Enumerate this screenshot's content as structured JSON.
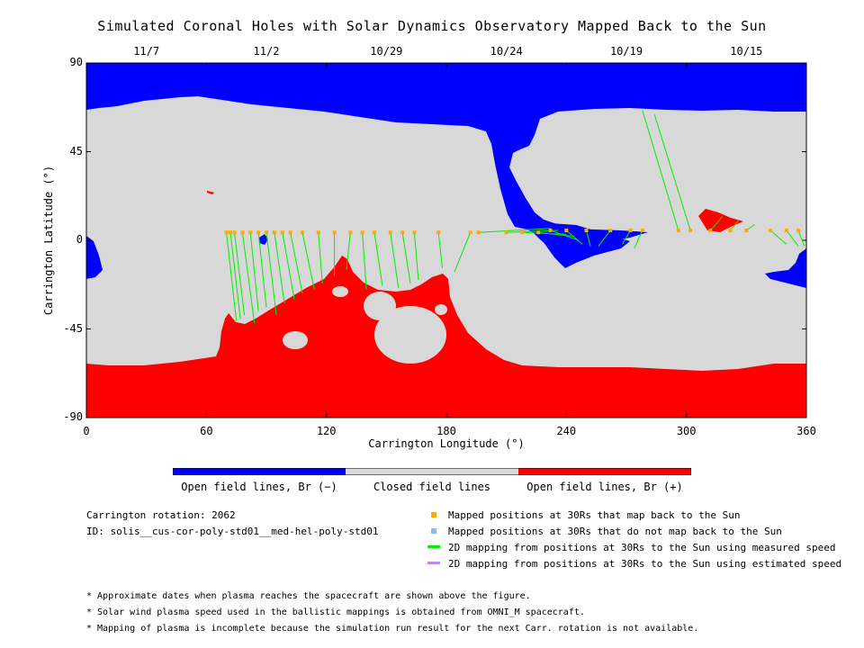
{
  "title": "Simulated Coronal Holes with Solar Dynamics Observatory Mapped Back to the Sun",
  "chart_data": {
    "type": "map",
    "xlabel": "Carrington Longitude (°)",
    "ylabel": "Carrington Latitude (°)",
    "xlim": [
      0,
      360
    ],
    "ylim": [
      -90,
      90
    ],
    "x_ticks": [
      "0",
      "60",
      "120",
      "180",
      "240",
      "300",
      "360"
    ],
    "y_ticks": [
      "90",
      "45",
      "0",
      "-45",
      "-90"
    ],
    "top_dates": [
      {
        "label": "11/7",
        "lon": 30
      },
      {
        "label": "11/2",
        "lon": 90
      },
      {
        "label": "10/29",
        "lon": 150
      },
      {
        "label": "10/24",
        "lon": 210
      },
      {
        "label": "10/19",
        "lon": 270
      },
      {
        "label": "10/15",
        "lon": 330
      }
    ],
    "colors": {
      "open_negative": "#0000ff",
      "closed": "#d8d8d8",
      "open_positive": "#ff0000",
      "mapped": "#ffaa00",
      "unmapped": "#88bbee",
      "measured_line": "#00ee00",
      "estimated_line": "#bb88ee"
    },
    "mapping_lines": [
      {
        "from": [
          70,
          4
        ],
        "to": [
          75,
          -41
        ]
      },
      {
        "from": [
          72,
          4
        ],
        "to": [
          77,
          -40
        ]
      },
      {
        "from": [
          74,
          4
        ],
        "to": [
          79,
          -38
        ]
      },
      {
        "from": [
          78,
          4
        ],
        "to": [
          84,
          -42
        ]
      },
      {
        "from": [
          82,
          4
        ],
        "to": [
          86,
          -36
        ]
      },
      {
        "from": [
          86,
          4
        ],
        "to": [
          90,
          -34
        ]
      },
      {
        "from": [
          90,
          4
        ],
        "to": [
          95,
          -38
        ]
      },
      {
        "from": [
          94,
          4
        ],
        "to": [
          99,
          -32
        ]
      },
      {
        "from": [
          98,
          4
        ],
        "to": [
          104,
          -30
        ]
      },
      {
        "from": [
          102,
          4
        ],
        "to": [
          108,
          -27
        ]
      },
      {
        "from": [
          108,
          4
        ],
        "to": [
          114,
          -25
        ]
      },
      {
        "from": [
          116,
          4
        ],
        "to": [
          118,
          -22
        ]
      },
      {
        "from": [
          124,
          4
        ],
        "to": [
          124,
          -18
        ]
      },
      {
        "from": [
          132,
          4
        ],
        "to": [
          130,
          -15
        ]
      },
      {
        "from": [
          138,
          4
        ],
        "to": [
          140,
          -25
        ]
      },
      {
        "from": [
          144,
          4
        ],
        "to": [
          148,
          -23
        ]
      },
      {
        "from": [
          152,
          4
        ],
        "to": [
          156,
          -24
        ]
      },
      {
        "from": [
          158,
          4
        ],
        "to": [
          162,
          -22
        ]
      },
      {
        "from": [
          164,
          4
        ],
        "to": [
          166,
          -20
        ]
      },
      {
        "from": [
          176,
          4
        ],
        "to": [
          178,
          -14
        ]
      },
      {
        "from": [
          192,
          4
        ],
        "to": [
          184,
          -16
        ]
      },
      {
        "from": [
          196,
          4
        ],
        "to": [
          232,
          6
        ]
      },
      {
        "from": [
          210,
          4
        ],
        "to": [
          236,
          5
        ]
      },
      {
        "from": [
          218,
          4
        ],
        "to": [
          240,
          3
        ]
      },
      {
        "from": [
          226,
          4
        ],
        "to": [
          244,
          2
        ]
      },
      {
        "from": [
          232,
          5
        ],
        "to": [
          246,
          0
        ]
      },
      {
        "from": [
          240,
          5
        ],
        "to": [
          248,
          -2
        ]
      },
      {
        "from": [
          250,
          5
        ],
        "to": [
          252,
          -3
        ]
      },
      {
        "from": [
          262,
          5
        ],
        "to": [
          256,
          -3
        ]
      },
      {
        "from": [
          272,
          5
        ],
        "to": [
          268,
          -2
        ]
      },
      {
        "from": [
          278,
          5
        ],
        "to": [
          274,
          -4
        ]
      },
      {
        "from": [
          296,
          5
        ],
        "to": [
          278,
          66
        ]
      },
      {
        "from": [
          302,
          5
        ],
        "to": [
          284,
          64
        ]
      },
      {
        "from": [
          312,
          5
        ],
        "to": [
          318,
          12
        ]
      },
      {
        "from": [
          322,
          5
        ],
        "to": [
          326,
          10
        ]
      },
      {
        "from": [
          330,
          5
        ],
        "to": [
          334,
          8
        ]
      },
      {
        "from": [
          342,
          5
        ],
        "to": [
          350,
          -2
        ]
      },
      {
        "from": [
          350,
          5
        ],
        "to": [
          356,
          -3
        ]
      },
      {
        "from": [
          356,
          5
        ],
        "to": [
          359,
          -3
        ]
      }
    ],
    "mapped_points": [
      [
        70,
        4
      ],
      [
        72,
        4
      ],
      [
        74,
        4
      ],
      [
        78,
        4
      ],
      [
        82,
        4
      ],
      [
        86,
        4
      ],
      [
        90,
        4
      ],
      [
        94,
        4
      ],
      [
        98,
        4
      ],
      [
        102,
        4
      ],
      [
        108,
        4
      ],
      [
        116,
        4
      ],
      [
        124,
        4
      ],
      [
        132,
        4
      ],
      [
        138,
        4
      ],
      [
        144,
        4
      ],
      [
        152,
        4
      ],
      [
        158,
        4
      ],
      [
        164,
        4
      ],
      [
        176,
        4
      ],
      [
        192,
        4
      ],
      [
        196,
        4
      ],
      [
        210,
        4
      ],
      [
        218,
        4
      ],
      [
        226,
        4
      ],
      [
        232,
        5
      ],
      [
        240,
        5
      ],
      [
        250,
        5
      ],
      [
        262,
        5
      ],
      [
        272,
        5
      ],
      [
        278,
        5
      ],
      [
        296,
        5
      ],
      [
        302,
        5
      ],
      [
        312,
        5
      ],
      [
        322,
        5
      ],
      [
        330,
        5
      ],
      [
        342,
        5
      ],
      [
        350,
        5
      ],
      [
        356,
        5
      ]
    ]
  },
  "legend_bar": {
    "open_negative": "Open field lines, Br (−)",
    "closed": "Closed field lines",
    "open_positive": "Open field lines, Br (+)"
  },
  "info": {
    "rotation": "Carrington rotation: 2062",
    "id": "ID: solis__cus-cor-poly-std01__med-hel-poly-std01"
  },
  "key": {
    "mapped": "Mapped positions at 30Rs that map back to the Sun",
    "unmapped": "Mapped positions at 30Rs that do not map back to the Sun",
    "measured": "2D mapping from positions at 30Rs to the Sun using measured speed",
    "estimated": "2D mapping from positions at 30Rs to the Sun using estimated speed"
  },
  "notes": [
    "* Approximate dates when plasma reaches the spacecraft are shown above the figure.",
    "* Solar wind plasma speed used in the ballistic mappings is obtained from OMNI_M spacecraft.",
    "* Mapping of plasma is incomplete because the simulation run result for the next Carr. rotation is not available."
  ]
}
